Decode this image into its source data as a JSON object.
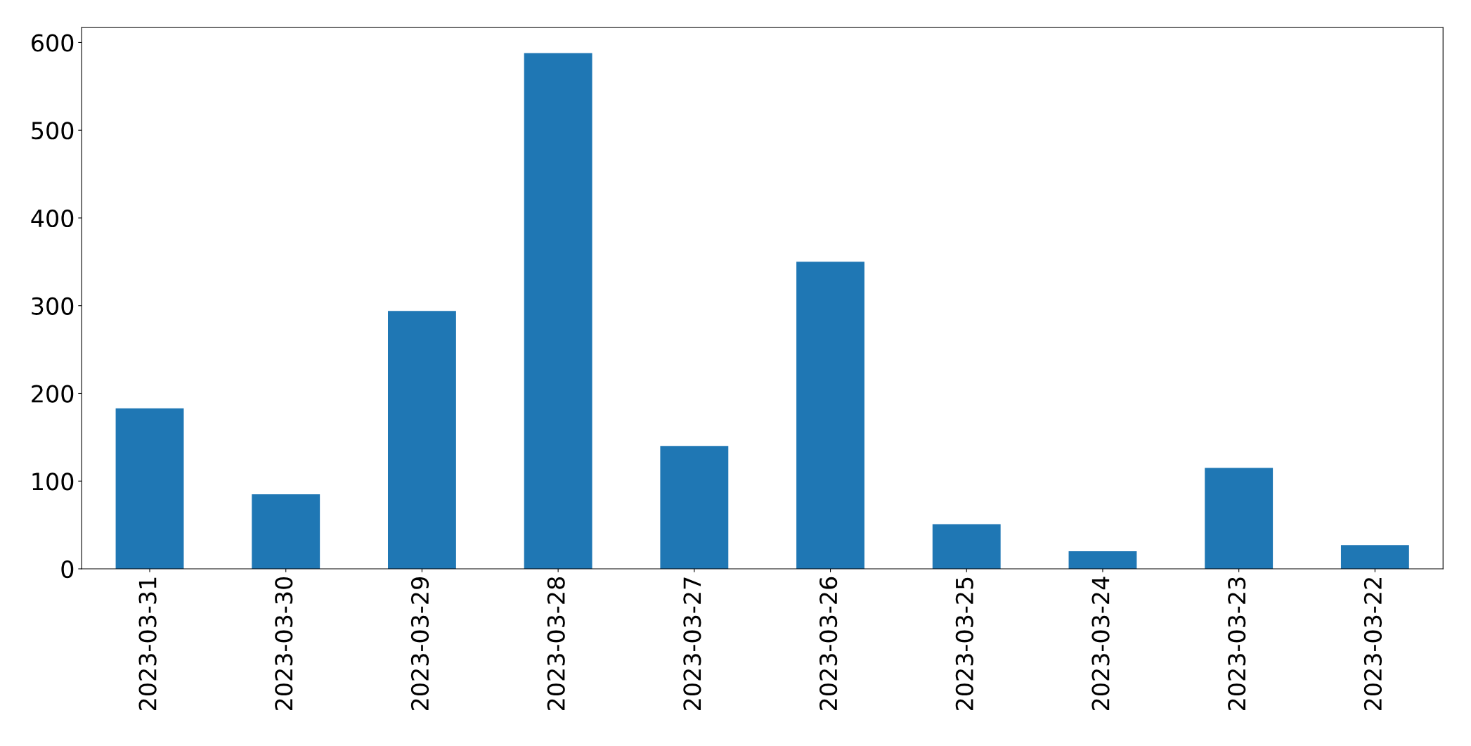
{
  "chart_data": {
    "type": "bar",
    "categories": [
      "2023-03-31",
      "2023-03-30",
      "2023-03-29",
      "2023-03-28",
      "2023-03-27",
      "2023-03-26",
      "2023-03-25",
      "2023-03-24",
      "2023-03-23",
      "2023-03-22"
    ],
    "values": [
      183,
      85,
      294,
      588,
      140,
      350,
      51,
      20,
      115,
      27
    ],
    "color": "#1f77b4",
    "ylim": [
      0,
      617
    ],
    "yticks": [
      0,
      100,
      200,
      300,
      400,
      500,
      600
    ],
    "grid": false,
    "legend": false
  }
}
